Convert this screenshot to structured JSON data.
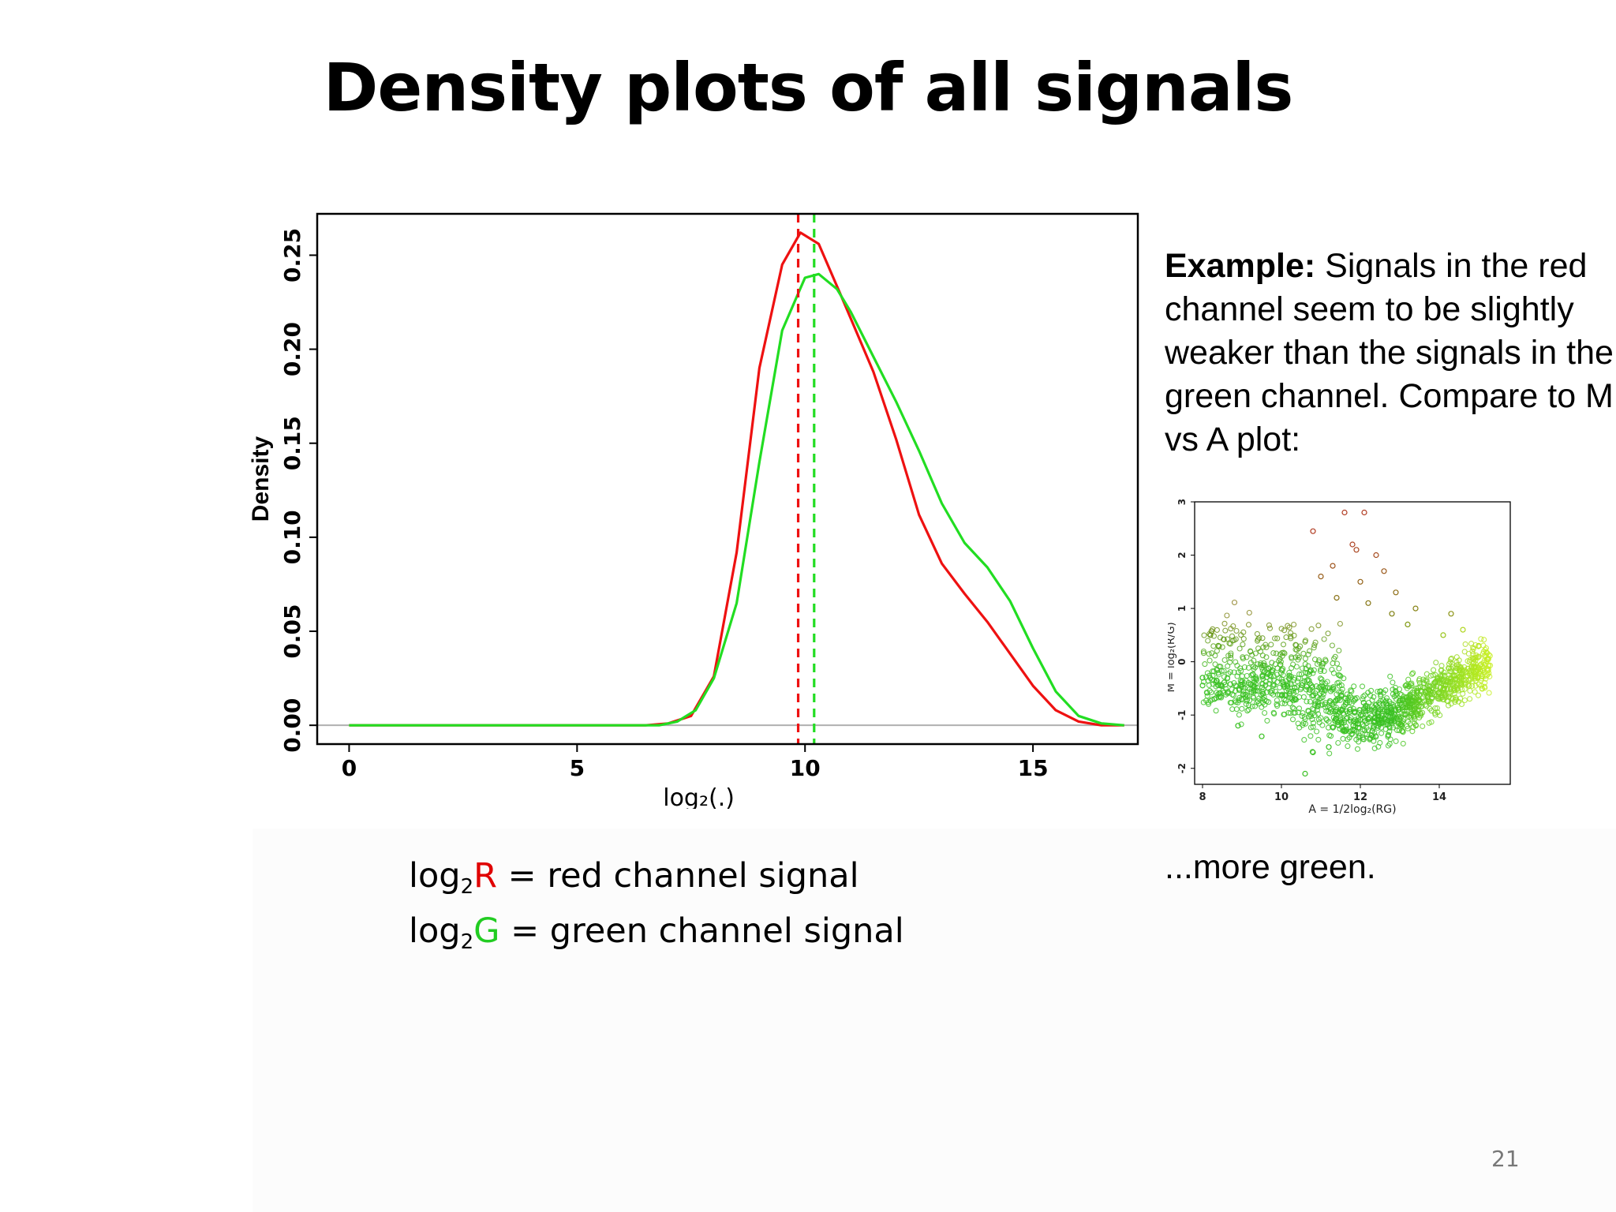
{
  "slide": {
    "title": "Density plots of all signals",
    "page_number": "21"
  },
  "description": {
    "bold_lead": "Example:",
    "text": " Signals in the red channel seem to be slightly weaker than the signals in the green channel. Compare to M vs A plot:",
    "more": "...more green."
  },
  "legend": {
    "red": {
      "prefix": "log",
      "sub": "2",
      "letter": "R",
      "rest": " = red channel signal",
      "color": "#e00000"
    },
    "green": {
      "prefix": "log",
      "sub": "2",
      "letter": "G",
      "rest": " = green channel signal",
      "color": "#22cc22"
    }
  },
  "chart_data": [
    {
      "type": "line",
      "title": "",
      "xlabel": "log₂(.)",
      "ylabel": "Density",
      "xlim": [
        -0.7,
        17.3
      ],
      "ylim": [
        -0.01,
        0.272
      ],
      "xticks": [
        0,
        5,
        10,
        15
      ],
      "xtick_labels": [
        "0",
        "5",
        "10",
        "15"
      ],
      "yticks": [
        0.0,
        0.05,
        0.1,
        0.15,
        0.2,
        0.25
      ],
      "ytick_labels": [
        "0.00",
        "0.05",
        "0.10",
        "0.15",
        "0.20",
        "0.25"
      ],
      "grid": false,
      "baseline": 0,
      "series": [
        {
          "color": "#ee1111",
          "x": [
            0,
            6.5,
            7.0,
            7.5,
            8.0,
            8.5,
            9.0,
            9.5,
            9.9,
            10.3,
            10.8,
            11.5,
            12.0,
            12.5,
            13.0,
            13.5,
            14.0,
            14.5,
            15.0,
            15.5,
            16.0,
            16.5,
            17.0
          ],
          "y": [
            0,
            0.0,
            0.001,
            0.005,
            0.026,
            0.092,
            0.19,
            0.245,
            0.262,
            0.256,
            0.228,
            0.188,
            0.152,
            0.112,
            0.086,
            0.07,
            0.055,
            0.038,
            0.021,
            0.008,
            0.002,
            0.0,
            0
          ]
        },
        {
          "color": "#22dd22",
          "x": [
            0,
            6.8,
            7.2,
            7.6,
            8.0,
            8.5,
            9.0,
            9.5,
            10.0,
            10.3,
            10.7,
            11.0,
            11.5,
            12.0,
            12.5,
            13.0,
            13.5,
            14.0,
            14.5,
            15.0,
            15.5,
            16.0,
            16.5,
            17.0
          ],
          "y": [
            0,
            0.0,
            0.002,
            0.008,
            0.025,
            0.065,
            0.14,
            0.21,
            0.238,
            0.24,
            0.232,
            0.22,
            0.196,
            0.172,
            0.146,
            0.118,
            0.097,
            0.084,
            0.066,
            0.041,
            0.018,
            0.005,
            0.001,
            0
          ]
        }
      ],
      "vlines": [
        {
          "x": 9.85,
          "color": "#ee1111",
          "style": "dashed"
        },
        {
          "x": 10.2,
          "color": "#22dd22",
          "style": "dashed"
        }
      ]
    },
    {
      "type": "scatter",
      "title": "",
      "xlabel": "A = 1/2log₂(RG)",
      "ylabel": "M = log₂(R/G)",
      "xlim": [
        7.8,
        15.8
      ],
      "ylim": [
        -2.3,
        3.0
      ],
      "xticks": [
        8,
        10,
        12,
        14
      ],
      "xtick_labels": [
        "8",
        "10",
        "12",
        "14"
      ],
      "yticks": [
        -2,
        -1,
        0,
        1,
        2,
        3
      ],
      "ytick_labels": [
        "-2",
        "-1",
        "0",
        "1",
        "2",
        "3"
      ],
      "grid": false,
      "colors": {
        "low": "#38c020",
        "mid": "#7a8410",
        "high": "#b03a20",
        "right": "#c8f020"
      },
      "points": [
        [
          11.6,
          2.8
        ],
        [
          12.1,
          2.8
        ],
        [
          10.8,
          2.45
        ],
        [
          11.9,
          2.1
        ],
        [
          11.8,
          2.2
        ],
        [
          12.4,
          2.0
        ],
        [
          11.3,
          1.8
        ],
        [
          12.6,
          1.7
        ],
        [
          11.0,
          1.6
        ],
        [
          12.0,
          1.5
        ],
        [
          12.9,
          1.3
        ],
        [
          11.4,
          1.2
        ],
        [
          13.4,
          1.0
        ],
        [
          12.2,
          1.1
        ],
        [
          14.3,
          0.9
        ],
        [
          14.6,
          0.6
        ],
        [
          14.1,
          0.5
        ],
        [
          15.0,
          0.3
        ],
        [
          14.9,
          -0.1
        ],
        [
          13.2,
          0.7
        ],
        [
          12.8,
          0.9
        ],
        [
          10.6,
          -2.1
        ],
        [
          10.8,
          -1.7
        ],
        [
          9.5,
          -1.4
        ],
        [
          11.2,
          -1.6
        ],
        [
          12.3,
          -1.3
        ],
        [
          8.9,
          -1.2
        ],
        [
          8.3,
          -0.7
        ],
        [
          8.0,
          -0.3
        ],
        [
          8.2,
          0.5
        ],
        [
          8.4,
          0.3
        ]
      ]
    }
  ]
}
